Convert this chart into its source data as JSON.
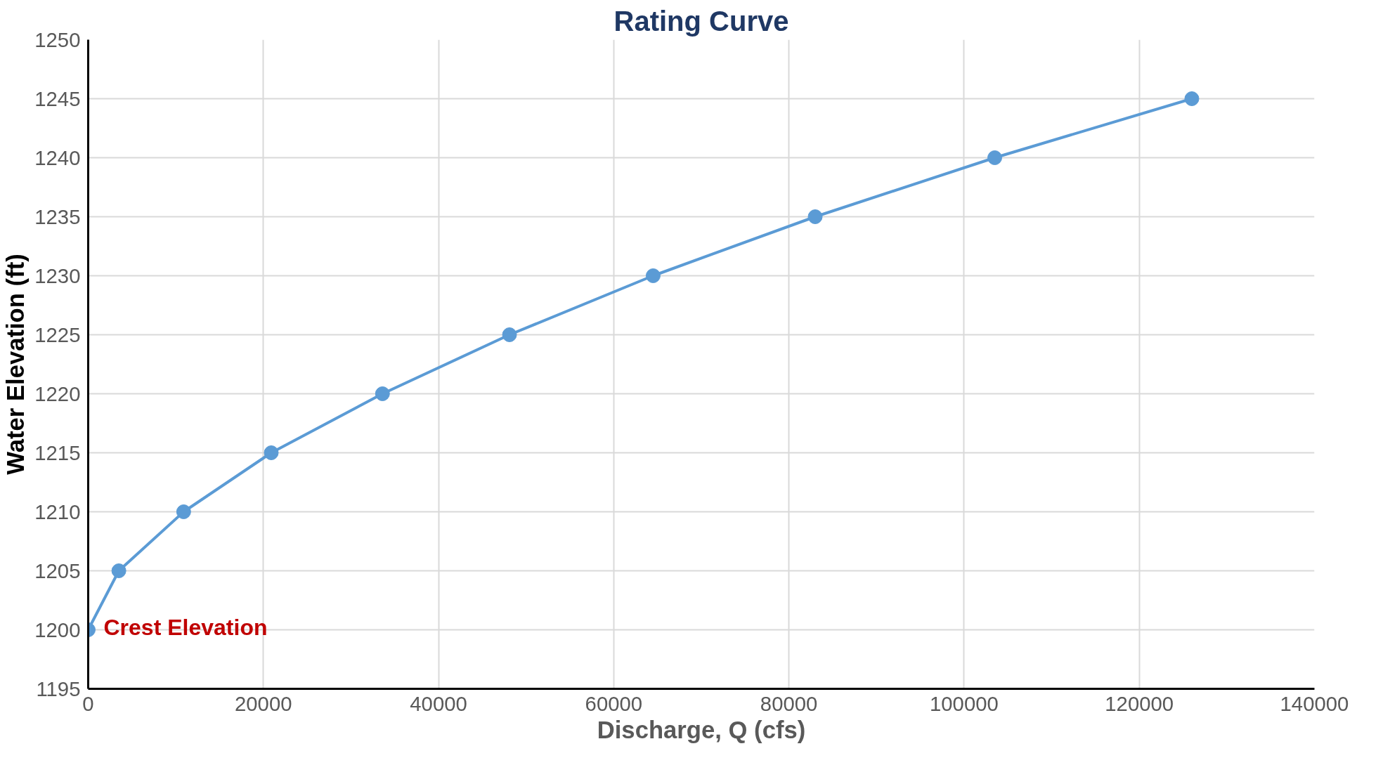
{
  "chart_data": {
    "type": "line",
    "title": "Rating Curve",
    "xlabel": "Discharge, Q (cfs)",
    "ylabel": "Water Elevation (ft)",
    "x": [
      0,
      3500,
      10900,
      20900,
      33600,
      48100,
      64500,
      83000,
      103500,
      126000
    ],
    "series": [
      {
        "color": "#5b9bd5",
        "values": [
          1200,
          1205,
          1210,
          1215,
          1220,
          1225,
          1230,
          1235,
          1240,
          1245
        ]
      }
    ],
    "xlim": [
      0,
      140000
    ],
    "xticks": [
      0,
      20000,
      40000,
      60000,
      80000,
      100000,
      120000,
      140000
    ],
    "ylim": [
      1195,
      1250
    ],
    "yticks": [
      1195,
      1200,
      1205,
      1210,
      1215,
      1220,
      1225,
      1230,
      1235,
      1240,
      1245,
      1250
    ],
    "grid": true,
    "marker": "circle",
    "line_style": "solid",
    "annotations": [
      {
        "text": "Crest Elevation",
        "x": 0,
        "y": 1200
      }
    ]
  }
}
